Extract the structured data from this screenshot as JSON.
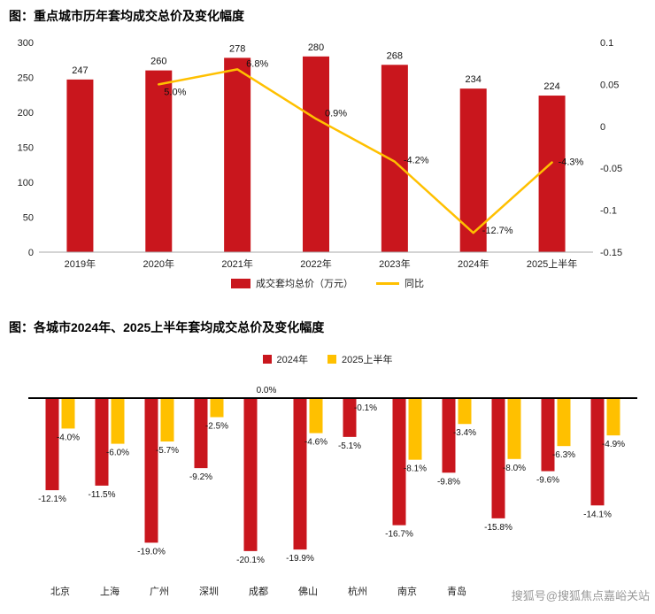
{
  "watermark": "搜狐号@搜狐焦点嘉峪关站",
  "colors": {
    "bar_red": "#c9161d",
    "line_yellow": "#ffc000",
    "axis_text": "#222222",
    "label_text": "#111111",
    "watermark_gray": "#9a9a9a"
  },
  "chart_data": [
    {
      "type": "bar",
      "title": "图：重点城市历年套均成交总价及变化幅度",
      "categories": [
        "2019年",
        "2020年",
        "2021年",
        "2022年",
        "2023年",
        "2024年",
        "2025上半年"
      ],
      "bar_series": {
        "name": "成交套均总价（万元）",
        "values": [
          247,
          260,
          278,
          280,
          268,
          234,
          224
        ]
      },
      "line_series": {
        "name": "同比",
        "values": [
          null,
          0.05,
          0.068,
          0.009,
          -0.042,
          -0.127,
          -0.043
        ],
        "point_labels": [
          "",
          "5.0%",
          "6.8%",
          "0.9%",
          "-4.2%",
          "-12.7%",
          "-4.3%"
        ]
      },
      "left_axis": {
        "min": 0,
        "max": 300,
        "ticks": [
          "300",
          "250",
          "200",
          "150",
          "100",
          "50",
          "0"
        ]
      },
      "right_axis": {
        "min": -0.15,
        "max": 0.1,
        "ticks": [
          "0.1",
          "0.05",
          "0",
          "-0.05",
          "-0.1",
          "-0.15"
        ]
      },
      "legend_position": "bottom",
      "grid": false
    },
    {
      "type": "bar",
      "title": "图：各城市2024年、2025上半年套均成交总价及变化幅度",
      "categories": [
        "北京",
        "上海",
        "广州",
        "深圳",
        "成都",
        "佛山",
        "杭州",
        "南京",
        "青岛",
        "",
        "",
        ""
      ],
      "series": [
        {
          "name": "2024年",
          "color": "#c9161d",
          "values": [
            -12.1,
            -11.5,
            -19.0,
            -9.2,
            -20.1,
            -19.9,
            -5.1,
            -16.7,
            -9.8,
            -15.8,
            -9.6,
            -14.1
          ]
        },
        {
          "name": "2025上半年",
          "color": "#ffc000",
          "values": [
            -4.0,
            -6.0,
            -5.7,
            -2.5,
            0.0,
            -4.6,
            -0.1,
            -8.1,
            -3.4,
            -8.0,
            -6.3,
            -4.9
          ]
        }
      ],
      "ylim": [
        -22,
        0
      ],
      "legend_position": "top",
      "grid": false
    }
  ]
}
